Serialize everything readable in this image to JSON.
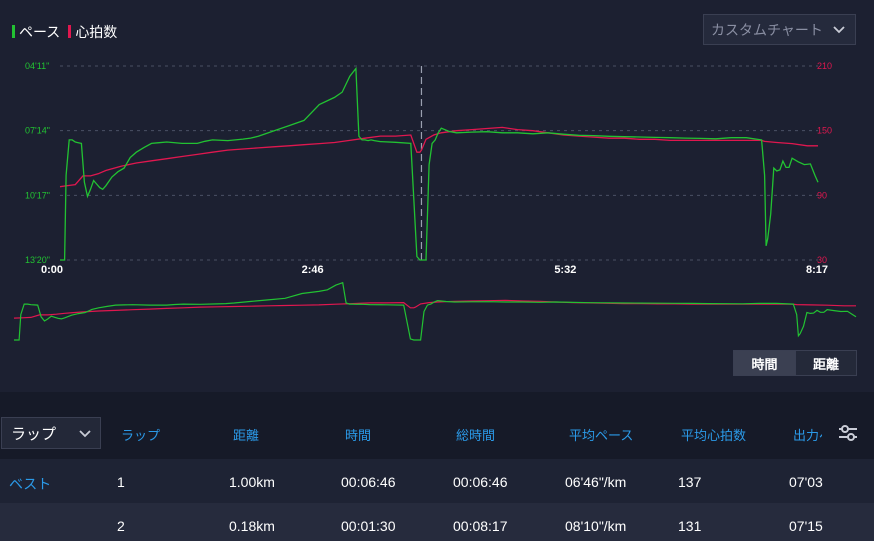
{
  "legend": {
    "pace_label": "ペース",
    "hr_label": "心拍数",
    "pace_color": "#22c232",
    "hr_color": "#e0174f"
  },
  "chart_selector": {
    "value": "カスタムチャート"
  },
  "chart_data": {
    "type": "line",
    "x_tick_labels": [
      "0:00",
      "2:46",
      "5:32",
      "8:17"
    ],
    "y_left_tick_labels": [
      "04'11\"",
      "07'14\"",
      "10'17\"",
      "13'20\""
    ],
    "y_right_tick_labels": [
      "210",
      "150",
      "90",
      "30"
    ],
    "xlim_seconds": [
      0,
      497
    ],
    "y_left_lim_seconds_per_km": [
      251,
      800
    ],
    "y_right_lim_bpm": [
      30,
      210
    ],
    "grid": true,
    "cursor_x_seconds": 237,
    "series": [
      {
        "name": "ペース",
        "color": "#22c232",
        "axis": "left",
        "x": [
          0,
          3,
          4,
          6,
          8,
          10,
          12,
          14,
          16,
          18,
          20,
          22,
          24,
          26,
          28,
          30,
          34,
          38,
          42,
          46,
          50,
          55,
          60,
          65,
          70,
          80,
          90,
          95,
          100,
          110,
          120,
          125,
          130,
          140,
          150,
          160,
          170,
          180,
          185,
          190,
          194,
          196,
          198,
          200,
          202,
          204,
          206,
          210,
          220,
          230,
          234,
          236,
          237,
          238,
          240,
          242,
          244,
          246,
          248,
          250,
          255,
          260,
          270,
          280,
          290,
          300,
          310,
          320,
          330,
          340,
          350,
          360,
          370,
          380,
          390,
          400,
          410,
          420,
          430,
          440,
          450,
          460,
          462,
          463,
          464,
          466,
          468,
          470,
          472,
          474,
          476,
          478,
          480,
          484,
          488,
          492,
          495,
          497
        ],
        "y": [
          800,
          800,
          560,
          460,
          460,
          466,
          468,
          470,
          580,
          620,
          600,
          575,
          585,
          595,
          600,
          590,
          565,
          550,
          540,
          510,
          495,
          482,
          470,
          468,
          466,
          470,
          470,
          464,
          460,
          462,
          458,
          455,
          450,
          435,
          420,
          405,
          360,
          340,
          325,
          280,
          258,
          450,
          460,
          460,
          462,
          460,
          462,
          465,
          467,
          470,
          790,
          800,
          800,
          800,
          800,
          530,
          470,
          460,
          440,
          427,
          436,
          440,
          438,
          437,
          440,
          440,
          443,
          440,
          444,
          447,
          448,
          450,
          451,
          452,
          453,
          454,
          455,
          456,
          457,
          454,
          454,
          460,
          560,
          760,
          740,
          670,
          540,
          548,
          545,
          520,
          538,
          538,
          512,
          522,
          530,
          528,
          560,
          580
        ]
      },
      {
        "name": "心拍数",
        "color": "#e0174f",
        "axis": "right",
        "x": [
          0,
          5,
          10,
          15,
          20,
          25,
          30,
          35,
          40,
          50,
          60,
          70,
          80,
          90,
          100,
          110,
          120,
          130,
          140,
          150,
          160,
          170,
          180,
          190,
          200,
          210,
          220,
          230,
          234,
          236,
          237,
          240,
          245,
          250,
          260,
          270,
          280,
          290,
          300,
          310,
          320,
          330,
          340,
          350,
          360,
          370,
          380,
          390,
          400,
          410,
          420,
          430,
          440,
          450,
          460,
          462,
          470,
          480,
          490,
          497
        ],
        "y": [
          98,
          99,
          100,
          108,
          108,
          110,
          113,
          115,
          117,
          120,
          122,
          124,
          126,
          128,
          130,
          132,
          133,
          134,
          135,
          136,
          137,
          138,
          139,
          141,
          143,
          145,
          145,
          146,
          130,
          130,
          132,
          142,
          146,
          148,
          150,
          151,
          152,
          153,
          151,
          150,
          148,
          146,
          145,
          144,
          143,
          143,
          142,
          142,
          141,
          141,
          141,
          141,
          141,
          141,
          141,
          140,
          139,
          138,
          136,
          136
        ]
      }
    ]
  },
  "overview_chart": {
    "name": "range-overview"
  },
  "toggle": {
    "time_label": "時間",
    "distance_label": "距離"
  },
  "lap_selector": {
    "value": "ラップ"
  },
  "table": {
    "headers": [
      "ラップ",
      "距離",
      "時間",
      "総時間",
      "平均ペース",
      "平均心拍数",
      "出力ペ"
    ],
    "rows": [
      {
        "best": "ベスト",
        "lap": "1",
        "distance": "1.00km",
        "time": "00:06:46",
        "total_time": "00:06:46",
        "avg_pace": "06'46\"/km",
        "avg_hr": "137",
        "power_pace": "07'03"
      },
      {
        "best": "",
        "lap": "2",
        "distance": "0.18km",
        "time": "00:01:30",
        "total_time": "00:08:17",
        "avg_pace": "08'10\"/km",
        "avg_hr": "131",
        "power_pace": "07'15"
      }
    ]
  }
}
